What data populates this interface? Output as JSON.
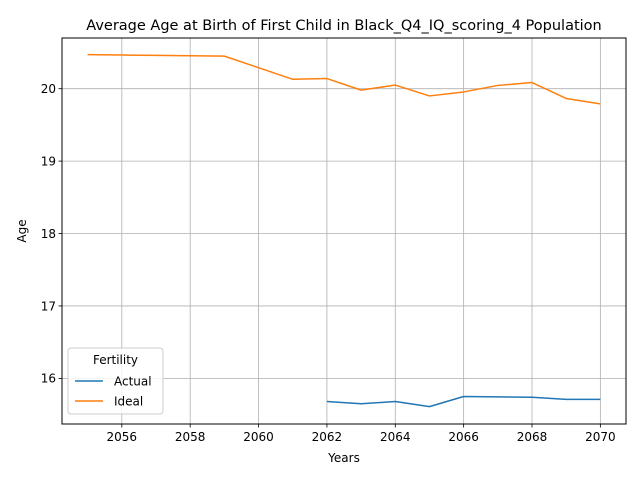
{
  "chart_data": {
    "type": "line",
    "title": "Average Age at Birth of First Child in Black_Q4_IQ_scoring_4 Population",
    "xlabel": "Years",
    "ylabel": "Age",
    "xlim": [
      2054.25,
      2070.75
    ],
    "ylim": [
      15.37,
      20.7
    ],
    "xticks": [
      "2056",
      "2058",
      "2060",
      "2062",
      "2064",
      "2066",
      "2068",
      "2070"
    ],
    "yticks": [
      "16",
      "17",
      "18",
      "19",
      "20"
    ],
    "grid": true,
    "legend": {
      "title": "Fertility",
      "placement": "lower-left"
    },
    "series": [
      {
        "name": "Actual",
        "color": "#1f77b4",
        "x": [
          2062,
          2063,
          2064,
          2065,
          2066,
          2067,
          2068,
          2069,
          2070
        ],
        "y": [
          15.68,
          15.65,
          15.68,
          15.61,
          15.75,
          15.745,
          15.74,
          15.71,
          15.71
        ]
      },
      {
        "name": "Ideal",
        "color": "#ff7f0e",
        "x": [
          2055,
          2056,
          2057,
          2058,
          2059,
          2060,
          2061,
          2062,
          2063,
          2064,
          2065,
          2066,
          2067,
          2068,
          2069,
          2070
        ],
        "y": [
          20.47,
          20.465,
          20.46,
          20.455,
          20.45,
          20.29,
          20.13,
          20.14,
          19.98,
          20.05,
          19.9,
          19.955,
          20.045,
          20.085,
          19.865,
          19.79
        ]
      }
    ]
  }
}
